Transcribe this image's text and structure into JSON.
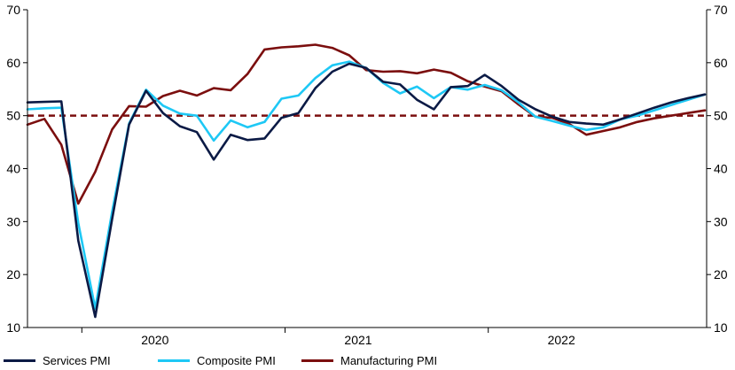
{
  "chart_data": {
    "type": "line",
    "x_start": "2019-10",
    "x": [
      "2019-10",
      "2019-11",
      "2019-12",
      "2020-01",
      "2020-02",
      "2020-03",
      "2020-04",
      "2020-05",
      "2020-06",
      "2020-07",
      "2020-08",
      "2020-09",
      "2020-10",
      "2020-11",
      "2020-12",
      "2021-01",
      "2021-02",
      "2021-03",
      "2021-04",
      "2021-05",
      "2021-06",
      "2021-07",
      "2021-08",
      "2021-09",
      "2021-10",
      "2021-11",
      "2021-12",
      "2022-01",
      "2022-02",
      "2022-03",
      "2022-04",
      "2022-05",
      "2022-06",
      "2022-07",
      "2022-08",
      "2022-09",
      "2022-10",
      "2022-11",
      "2022-12",
      "2023-01",
      "2023-02"
    ],
    "x_tick_labels": [
      "2020",
      "2021",
      "2022"
    ],
    "x_tick_label_months": [
      "2020-06",
      "2021-06",
      "2022-06"
    ],
    "x_tick_marks": [
      "2020-01",
      "2021-01",
      "2022-01"
    ],
    "y_ticks": [
      10,
      20,
      30,
      40,
      50,
      60,
      70
    ],
    "ylim": [
      10,
      70
    ],
    "reference_line": 50,
    "series": [
      {
        "name": "Services PMI",
        "color": "#0b1a45",
        "values": [
          52.5,
          52.6,
          52.7,
          26.4,
          12.0,
          30.5,
          48.3,
          54.7,
          50.5,
          48.0,
          46.9,
          41.7,
          46.4,
          45.4,
          45.7,
          49.6,
          50.5,
          55.2,
          58.3,
          59.8,
          59.0,
          56.4,
          55.9,
          53.0,
          51.2,
          55.4,
          55.6,
          57.7,
          55.6,
          53.0,
          51.2,
          49.8,
          48.8,
          48.5,
          48.3,
          49.3,
          50.4,
          51.5,
          52.5,
          53.3,
          54.0
        ]
      },
      {
        "name": "Composite PMI",
        "color": "#1ec8f5",
        "values": [
          51.2,
          51.4,
          51.5,
          29.7,
          13.6,
          31.9,
          48.5,
          54.9,
          51.9,
          50.4,
          50.0,
          45.3,
          49.1,
          47.8,
          48.8,
          53.2,
          53.8,
          57.1,
          59.5,
          60.2,
          59.0,
          56.2,
          54.2,
          55.5,
          53.3,
          55.4,
          54.9,
          55.8,
          54.8,
          52.5,
          49.8,
          49.0,
          48.1,
          47.3,
          47.8,
          49.3,
          50.0,
          51.0,
          52.0,
          53.0,
          54.0
        ]
      },
      {
        "name": "Manufacturing PMI",
        "color": "#7b0e0e",
        "values": [
          48.3,
          49.4,
          44.5,
          33.4,
          39.4,
          47.4,
          51.8,
          51.7,
          53.7,
          54.7,
          53.8,
          55.2,
          54.8,
          57.9,
          62.5,
          62.9,
          63.1,
          63.4,
          62.8,
          61.4,
          58.6,
          58.3,
          58.4,
          58.0,
          58.7,
          58.1,
          56.5,
          55.5,
          54.6,
          52.1,
          49.8,
          49.6,
          48.4,
          46.4,
          47.1,
          47.8,
          48.8,
          49.5,
          50.0,
          50.5,
          51.0
        ]
      }
    ]
  }
}
